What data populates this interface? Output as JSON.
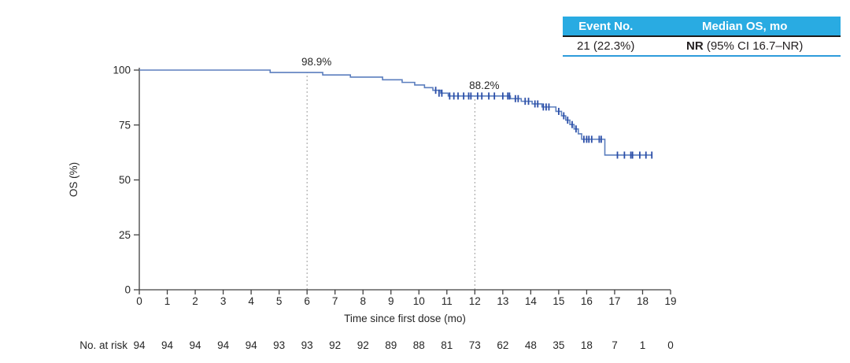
{
  "summary_table": {
    "headers": [
      "Event No.",
      "Median OS, mo"
    ],
    "event_no": "21 (22.3%)",
    "median_os_bold": "NR",
    "median_os_rest": " (95% CI 16.7–NR)",
    "header_bg": "#29ABE2",
    "header_text_color": "#FFFFFF",
    "header_rule_color": "#1C1C1C",
    "bottom_rule_color": "#2D9CDB"
  },
  "chart_data": {
    "type": "line",
    "subtype": "kaplan-meier-step",
    "title": "",
    "xlabel": "Time since first dose (mo)",
    "ylabel": "OS (%)",
    "xlim": [
      0,
      19
    ],
    "ylim": [
      0,
      100
    ],
    "xticks": [
      0,
      1,
      2,
      3,
      4,
      5,
      6,
      7,
      8,
      9,
      10,
      11,
      12,
      13,
      14,
      15,
      16,
      17,
      18,
      19
    ],
    "yticks": [
      0,
      25,
      50,
      75,
      100
    ],
    "grid": false,
    "legend_position": "none",
    "axis_color": "#404040",
    "text_color": "#262626",
    "series": [
      {
        "name": "OS",
        "line_color": "#5B7EBE",
        "censor_color": "#2B4EA8",
        "steps": [
          [
            0,
            100
          ],
          [
            4.68,
            98.9
          ],
          [
            6.56,
            97.8
          ],
          [
            7.55,
            96.8
          ],
          [
            8.7,
            95.6
          ],
          [
            9.4,
            94.4
          ],
          [
            9.85,
            93.2
          ],
          [
            10.2,
            92.0
          ],
          [
            10.5,
            90.8
          ],
          [
            10.78,
            89.5
          ],
          [
            11.05,
            88.2
          ],
          [
            13.27,
            87.0
          ],
          [
            13.66,
            85.8
          ],
          [
            14.05,
            84.6
          ],
          [
            14.4,
            83.2
          ],
          [
            14.9,
            81.2
          ],
          [
            15.1,
            79.2
          ],
          [
            15.25,
            77.2
          ],
          [
            15.4,
            75.2
          ],
          [
            15.55,
            73.2
          ],
          [
            15.7,
            71.0
          ],
          [
            15.82,
            68.5
          ],
          [
            16.65,
            61.3
          ]
        ],
        "end_time": 18.35,
        "censors": [
          [
            10.6,
            90.8
          ],
          [
            10.72,
            89.5
          ],
          [
            10.82,
            89.5
          ],
          [
            11.1,
            88.2
          ],
          [
            11.25,
            88.2
          ],
          [
            11.4,
            88.2
          ],
          [
            11.6,
            88.2
          ],
          [
            11.78,
            88.2
          ],
          [
            11.86,
            88.2
          ],
          [
            12.1,
            88.2
          ],
          [
            12.25,
            88.2
          ],
          [
            12.5,
            88.2
          ],
          [
            12.7,
            88.2
          ],
          [
            13.0,
            88.2
          ],
          [
            13.18,
            88.2
          ],
          [
            13.24,
            88.2
          ],
          [
            13.45,
            87.0
          ],
          [
            13.55,
            87.0
          ],
          [
            13.8,
            85.8
          ],
          [
            13.92,
            85.8
          ],
          [
            14.15,
            84.6
          ],
          [
            14.25,
            84.6
          ],
          [
            14.45,
            83.2
          ],
          [
            14.55,
            83.2
          ],
          [
            14.65,
            83.2
          ],
          [
            15.0,
            81.2
          ],
          [
            15.18,
            79.2
          ],
          [
            15.32,
            77.2
          ],
          [
            15.48,
            75.2
          ],
          [
            15.62,
            73.2
          ],
          [
            15.9,
            68.5
          ],
          [
            16.0,
            68.5
          ],
          [
            16.08,
            68.5
          ],
          [
            16.18,
            68.5
          ],
          [
            16.45,
            68.5
          ],
          [
            16.52,
            68.5
          ],
          [
            17.1,
            61.3
          ],
          [
            17.35,
            61.3
          ],
          [
            17.58,
            61.3
          ],
          [
            17.64,
            61.3
          ],
          [
            17.9,
            61.3
          ],
          [
            18.12,
            61.3
          ],
          [
            18.33,
            61.3
          ]
        ]
      }
    ],
    "annotations": [
      {
        "x": 6,
        "label": "98.9%"
      },
      {
        "x": 12,
        "label": "88.2%"
      }
    ],
    "reference_lines": {
      "x": [
        6,
        12
      ],
      "style": "dotted",
      "color": "#9B9B9B"
    }
  },
  "risk_table": {
    "label": "No. at risk",
    "times": [
      0,
      1,
      2,
      3,
      4,
      5,
      6,
      7,
      8,
      9,
      10,
      11,
      12,
      13,
      14,
      15,
      16,
      17,
      18,
      19
    ],
    "values": [
      94,
      94,
      94,
      94,
      94,
      93,
      93,
      92,
      92,
      89,
      88,
      81,
      73,
      62,
      48,
      35,
      18,
      7,
      1,
      0
    ]
  }
}
